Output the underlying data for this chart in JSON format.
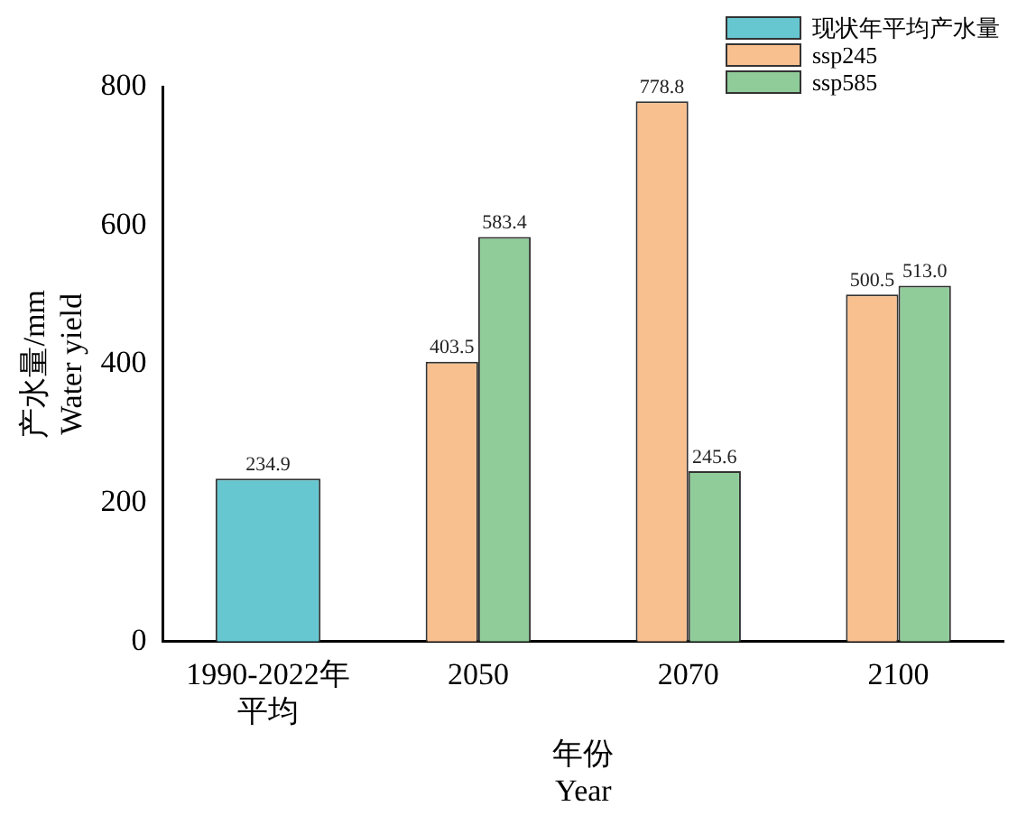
{
  "chart_data": {
    "type": "bar",
    "categories": [
      "1990-2022年平均",
      "2050",
      "2070",
      "2100"
    ],
    "series": [
      {
        "name": "现状年平均产水量",
        "color": "#66c7d1",
        "values": [
          234.9,
          null,
          null,
          null
        ],
        "value_labels": [
          "234.9",
          null,
          null,
          null
        ]
      },
      {
        "name": "ssp245",
        "color": "#f9c08f",
        "values": [
          null,
          403.5,
          778.8,
          500.5
        ],
        "value_labels": [
          null,
          "403.5",
          "778.8",
          "500.5"
        ]
      },
      {
        "name": "ssp585",
        "color": "#8fcc99",
        "values": [
          null,
          583.4,
          245.6,
          513.0
        ],
        "value_labels": [
          null,
          "583.4",
          "245.6",
          "513.0"
        ]
      }
    ],
    "xlabel": "年份\nYear",
    "ylabel": "产水量/mm\nWater yield",
    "ylim": [
      0,
      800
    ],
    "yticks": [
      0,
      200,
      400,
      600,
      800
    ],
    "grid": false,
    "legend": "top right"
  }
}
